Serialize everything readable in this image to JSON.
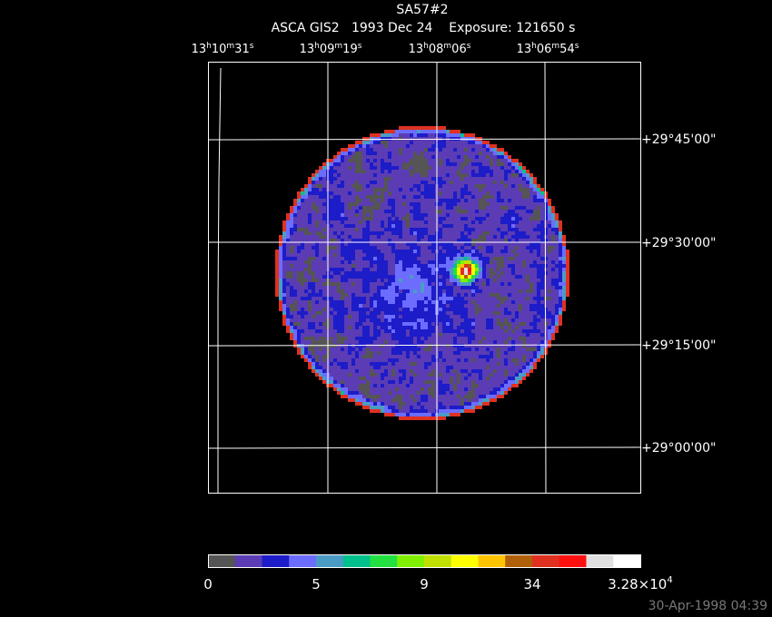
{
  "header": {
    "title": "SA57#2",
    "subtitle": "ASCA GIS2   1993 Dec 24    Exposure: 121650 s"
  },
  "ra_labels": [
    [
      "13",
      "h",
      "10",
      "m",
      "31",
      "s"
    ],
    [
      "13",
      "h",
      "09",
      "m",
      "19",
      "s"
    ],
    [
      "13",
      "h",
      "08",
      "m",
      "06",
      "s"
    ],
    [
      "13",
      "h",
      "06",
      "m",
      "54",
      "s"
    ]
  ],
  "dec_labels": [
    "+29°45'00\"",
    "+29°30'00\"",
    "+29°15'00\"",
    "+29°00'00\""
  ],
  "colorbar": {
    "colors": [
      "#555555",
      "#5b3cb4",
      "#1c1cc8",
      "#6c6cff",
      "#4a9cc4",
      "#00c08c",
      "#22e040",
      "#80f000",
      "#c0e000",
      "#ffff00",
      "#ffc400",
      "#b06008",
      "#e03020",
      "#ff1010",
      "#e0e0e0",
      "#ffffff"
    ],
    "labels": [
      [
        "0"
      ],
      [
        "5"
      ],
      [
        "9"
      ],
      [
        "34"
      ],
      [
        "3.28×10",
        "4"
      ]
    ]
  },
  "timestamp": "30-Apr-1998 04:39"
}
